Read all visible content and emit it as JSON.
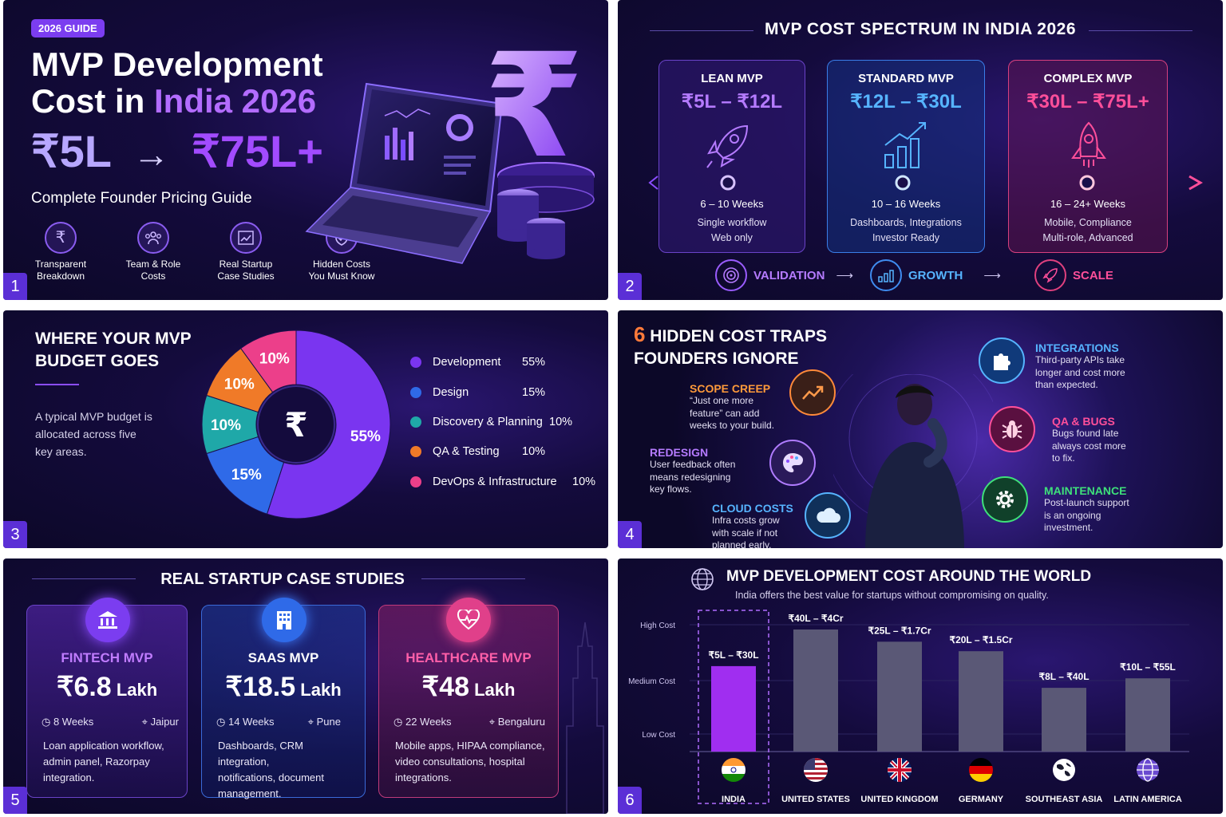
{
  "panel1": {
    "badge": "2026 GUIDE",
    "title_line1": "MVP Development",
    "title_line2_a": "Cost in ",
    "title_line2_b": "India 2026",
    "range_from": "₹5L",
    "range_arrow": "→",
    "range_to": "₹75L+",
    "subtitle": "Complete Founder Pricing Guide",
    "features": [
      {
        "line1": "Transparent",
        "line2": "Breakdown",
        "icon": "rupee-icon"
      },
      {
        "line1": "Team & Role",
        "line2": "Costs",
        "icon": "team-icon"
      },
      {
        "line1": "Real Startup",
        "line2": "Case Studies",
        "icon": "chart-icon"
      },
      {
        "line1": "Hidden Costs",
        "line2": "You Must Know",
        "icon": "shield-icon"
      }
    ],
    "number": "1"
  },
  "panel2": {
    "title": "MVP COST SPECTRUM IN INDIA 2026",
    "tiers": [
      {
        "name": "LEAN MVP",
        "range": "₹5L – ₹12L",
        "weeks": "6 – 10 Weeks",
        "desc1": "Single workflow",
        "desc2": "Web only",
        "color": "#b57bff"
      },
      {
        "name": "STANDARD MVP",
        "range": "₹12L – ₹30L",
        "weeks": "10 – 16 Weeks",
        "desc1": "Dashboards, Integrations",
        "desc2": "Investor Ready",
        "color": "#4fa8ff"
      },
      {
        "name": "COMPLEX MVP",
        "range": "₹30L – ₹75L+",
        "weeks": "16 – 24+ Weeks",
        "desc1": "Mobile, Compliance",
        "desc2": "Multi-role, Advanced",
        "color": "#ff4f9a"
      }
    ],
    "stages": [
      "VALIDATION",
      "GROWTH",
      "SCALE"
    ],
    "number": "2"
  },
  "panel3": {
    "title_line1": "WHERE YOUR MVP",
    "title_line2": "BUDGET GOES",
    "desc_line1": "A typical MVP budget is",
    "desc_line2": "allocated across five",
    "desc_line3": "key areas.",
    "center_symbol": "₹",
    "number": "3"
  },
  "panel4": {
    "title_num": "6",
    "title_line1": " HIDDEN COST TRAPS",
    "title_line2": "FOUNDERS IGNORE",
    "traps": {
      "scope": {
        "title": "SCOPE CREEP",
        "d1": "“Just one more",
        "d2": "feature” can add",
        "d3": "weeks to your build."
      },
      "redesign": {
        "title": "REDESIGN",
        "d1": "User feedback often",
        "d2": "means redesigning",
        "d3": "key flows."
      },
      "cloud": {
        "title": "CLOUD COSTS",
        "d1": "Infra costs grow",
        "d2": "with scale if not",
        "d3": "planned early."
      },
      "integrations": {
        "title": "INTEGRATIONS",
        "d1": "Third-party APIs take",
        "d2": "longer and cost more",
        "d3": "than expected."
      },
      "qa": {
        "title": "QA & BUGS",
        "d1": "Bugs found late",
        "d2": "always cost more",
        "d3": "to fix."
      },
      "maintenance": {
        "title": "MAINTENANCE",
        "d1": "Post-launch support",
        "d2": "is an ongoing",
        "d3": "investment."
      }
    },
    "number": "4"
  },
  "panel5": {
    "title": "REAL STARTUP CASE STUDIES",
    "cases": [
      {
        "name": "FINTECH MVP",
        "amount": "₹6.8",
        "unit": " Lakh",
        "weeks": "8 Weeks",
        "city": "Jaipur",
        "d1": "Loan application workflow,",
        "d2": "admin panel, Razorpay",
        "d3": "integration.",
        "icon": "bank-icon"
      },
      {
        "name": "SAAS MVP",
        "amount": "₹18.5",
        "unit": " Lakh",
        "weeks": "14 Weeks",
        "city": "Pune",
        "d1": "Dashboards, CRM integration,",
        "d2": "notifications, document",
        "d3": "management.",
        "icon": "building-icon"
      },
      {
        "name": "HEALTHCARE MVP",
        "amount": "₹48",
        "unit": " Lakh",
        "weeks": "22 Weeks",
        "city": "Bengaluru",
        "d1": "Mobile apps, HIPAA compliance,",
        "d2": "video consultations, hospital",
        "d3": "integrations.",
        "icon": "heartbeat-icon"
      }
    ],
    "number": "5"
  },
  "panel6": {
    "title": "MVP DEVELOPMENT COST AROUND THE WORLD",
    "subtitle": "India offers the best value for startups without compromising on quality.",
    "number": "6"
  },
  "chart_data": [
    {
      "type": "pie",
      "categories": [
        "Development",
        "Design",
        "Discovery & Planning",
        "QA & Testing",
        "DevOps & Infrastructure"
      ],
      "values": [
        55,
        15,
        10,
        10,
        10
      ],
      "labels": [
        "55%",
        "15%",
        "10%",
        "10%",
        "10%"
      ],
      "colors": [
        "#7a35f0",
        "#2f6ae8",
        "#1fa8a8",
        "#f07a28",
        "#ec3f8a"
      ],
      "title": "WHERE YOUR MVP BUDGET GOES",
      "legend": "right"
    },
    {
      "type": "bar",
      "categories": [
        "INDIA",
        "UNITED STATES",
        "UNITED KINGDOM",
        "GERMANY",
        "SOUTHEAST ASIA",
        "LATIN AMERICA"
      ],
      "value_labels": [
        "₹5L – ₹30L",
        "₹40L – ₹4Cr",
        "₹25L – ₹1.7Cr",
        "₹20L – ₹1.5Cr",
        "₹8L – ₹40L",
        "₹10L – ₹55L"
      ],
      "values": [
        0.63,
        0.9,
        0.81,
        0.74,
        0.47,
        0.54
      ],
      "ylabels": [
        "High Cost",
        "Medium Cost",
        "Low Cost"
      ],
      "highlight": "INDIA",
      "colors": {
        "highlight": "#a02ef0",
        "default": "#5a5876"
      },
      "title": "MVP DEVELOPMENT COST AROUND THE WORLD",
      "grid": true
    }
  ]
}
